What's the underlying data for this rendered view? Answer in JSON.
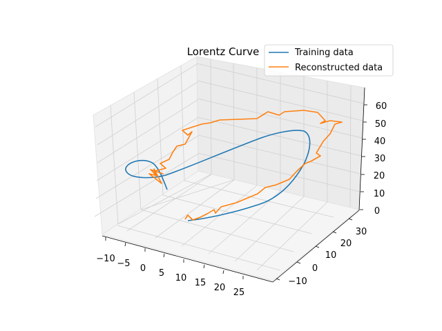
{
  "chart_data": {
    "type": "line",
    "projection": "3d",
    "title": "Lorentz Curve",
    "xlabel": "",
    "ylabel": "",
    "zlabel": "",
    "grid": true,
    "legend_position": "top-right",
    "x_ticks": [
      "−10",
      "−5",
      "0",
      "5",
      "10",
      "15",
      "20",
      "25"
    ],
    "y_ticks": [
      "−10",
      "0",
      "10",
      "20",
      "30"
    ],
    "z_ticks": [
      "0",
      "10",
      "20",
      "30",
      "40",
      "50",
      "60"
    ],
    "series": [
      {
        "name": "Training data",
        "color": "#1f77b4",
        "shape": "smooth closed-loop trajectory spiralling around a centre on the left and sweeping to the upper right"
      },
      {
        "name": "Reconstructed data",
        "color": "#ff7f0e",
        "shape": "jagged approximation of the same trajectory with tangled segment near the left centre"
      }
    ]
  }
}
